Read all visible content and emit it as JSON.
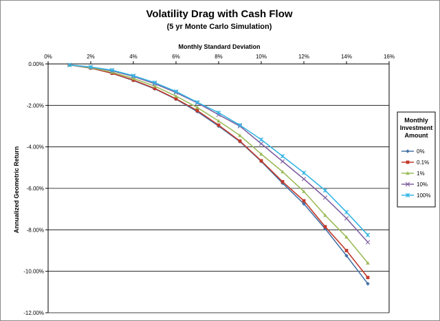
{
  "chart_data": {
    "type": "line",
    "title": "Volatility Drag with Cash Flow",
    "subtitle": "(5 yr Monte Carlo Simulation)",
    "xlabel": "Monthly Standard Deviation",
    "ylabel": "Annualized Geometric Return",
    "xlim": [
      0,
      16
    ],
    "ylim": [
      -12,
      0
    ],
    "x_axis_position": "top",
    "x_ticks": [
      0,
      2,
      4,
      6,
      8,
      10,
      12,
      14,
      16
    ],
    "x_tick_labels": [
      "0%",
      "2%",
      "4%",
      "6%",
      "8%",
      "10%",
      "12%",
      "14%",
      "16%"
    ],
    "y_ticks": [
      0,
      -2,
      -4,
      -6,
      -8,
      -10,
      -12
    ],
    "y_tick_labels": [
      "0.00%",
      "-2.00%",
      "-4.00%",
      "-6.00%",
      "-8.00%",
      "-10.00%",
      "-12.00%"
    ],
    "grid": "horizontal",
    "legend_position": "right",
    "legend_title": [
      "Monthly",
      "Investment",
      "Amount"
    ],
    "x": [
      1,
      2,
      3,
      4,
      5,
      6,
      7,
      8,
      9,
      10,
      11,
      12,
      13,
      14,
      15
    ],
    "series": [
      {
        "name": "0%",
        "color": "#4572A7",
        "marker": "diamond",
        "values": [
          -0.05,
          -0.2,
          -0.45,
          -0.8,
          -1.2,
          -1.7,
          -2.3,
          -3.0,
          -3.75,
          -4.7,
          -5.75,
          -6.75,
          -7.95,
          -9.25,
          -10.6
        ]
      },
      {
        "name": "0.1%",
        "color": "#C0392B",
        "marker": "square",
        "values": [
          -0.05,
          -0.2,
          -0.45,
          -0.78,
          -1.18,
          -1.68,
          -2.25,
          -2.95,
          -3.72,
          -4.67,
          -5.68,
          -6.6,
          -7.85,
          -9.0,
          -10.3
        ]
      },
      {
        "name": "1%",
        "color": "#9BBB59",
        "marker": "triangle",
        "values": [
          -0.05,
          -0.18,
          -0.4,
          -0.7,
          -1.07,
          -1.55,
          -2.1,
          -2.75,
          -3.45,
          -4.35,
          -5.2,
          -6.15,
          -7.3,
          -8.35,
          -9.6
        ]
      },
      {
        "name": "10%",
        "color": "#7D5FA0",
        "marker": "x",
        "values": [
          -0.05,
          -0.15,
          -0.33,
          -0.6,
          -0.95,
          -1.38,
          -1.88,
          -2.45,
          -3.0,
          -3.85,
          -4.7,
          -5.55,
          -6.45,
          -7.45,
          -8.6
        ]
      },
      {
        "name": "100%",
        "color": "#33B5E5",
        "marker": "star",
        "values": [
          -0.05,
          -0.15,
          -0.3,
          -0.57,
          -0.9,
          -1.33,
          -1.85,
          -2.35,
          -2.95,
          -3.65,
          -4.45,
          -5.25,
          -6.1,
          -7.15,
          -8.25
        ]
      }
    ]
  }
}
